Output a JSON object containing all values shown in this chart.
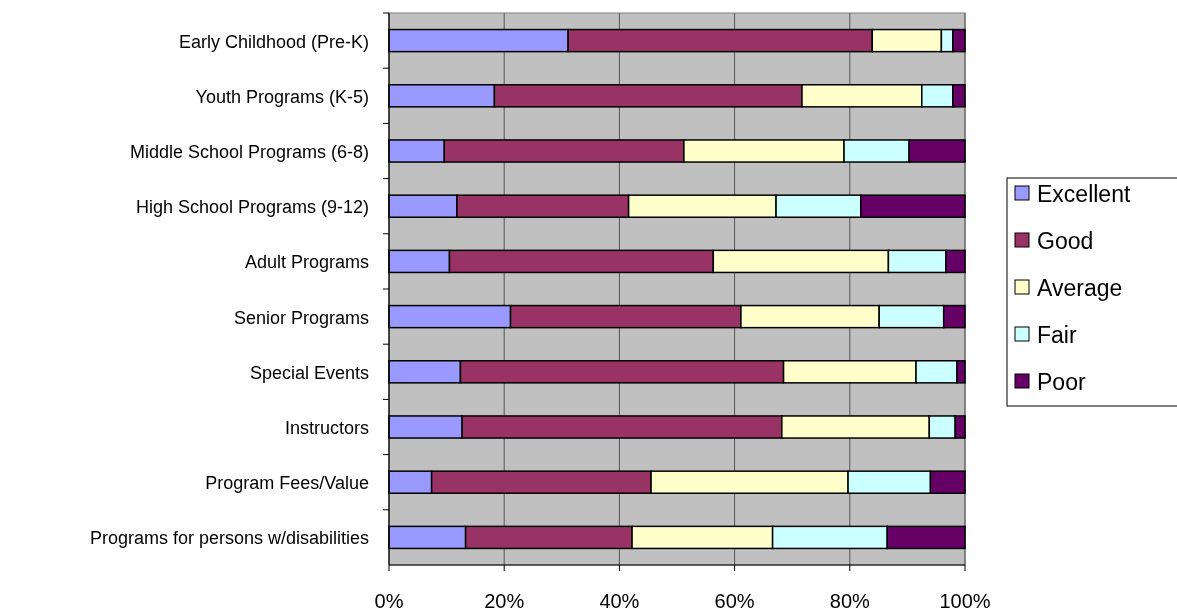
{
  "chart_data": {
    "type": "bar",
    "orientation": "horizontal",
    "stacked": true,
    "categories": [
      "Early Childhood (Pre-K)",
      "Youth Programs (K-5)",
      "Middle School Programs (6-8)",
      "High School Programs (9-12)",
      "Adult Programs",
      "Senior Programs",
      "Special Events",
      "Instructors",
      "Program Fees/Value",
      "Programs for persons w/disabilities"
    ],
    "series": [
      {
        "name": "Excellent",
        "color": "#9999ff",
        "values": [
          31.1,
          18.3,
          9.6,
          11.8,
          10.5,
          21.1,
          12.4,
          12.7,
          7.4,
          13.3
        ]
      },
      {
        "name": "Good",
        "color": "#993366",
        "values": [
          52.8,
          53.4,
          41.6,
          29.8,
          45.8,
          40.0,
          56.1,
          55.5,
          38.1,
          28.9
        ]
      },
      {
        "name": "Average",
        "color": "#ffffcc",
        "values": [
          12.0,
          20.8,
          27.8,
          25.6,
          30.4,
          24.0,
          23.0,
          25.6,
          34.2,
          24.4
        ]
      },
      {
        "name": "Fair",
        "color": "#ccffff",
        "values": [
          2.0,
          5.4,
          11.3,
          14.7,
          10.0,
          11.2,
          7.1,
          4.5,
          14.3,
          19.9
        ]
      },
      {
        "name": "Poor",
        "color": "#660066",
        "values": [
          2.1,
          2.1,
          9.7,
          18.1,
          3.3,
          3.7,
          1.4,
          1.7,
          6.0,
          13.5
        ]
      }
    ],
    "xlim": [
      0,
      100
    ],
    "xticks": [
      {
        "value": 0,
        "label": "0%"
      },
      {
        "value": 20,
        "label": "20%"
      },
      {
        "value": 40,
        "label": "40%"
      },
      {
        "value": 60,
        "label": "60%"
      },
      {
        "value": 80,
        "label": "80%"
      },
      {
        "value": 100,
        "label": "100%"
      }
    ],
    "grid": "x",
    "legend": "right"
  }
}
